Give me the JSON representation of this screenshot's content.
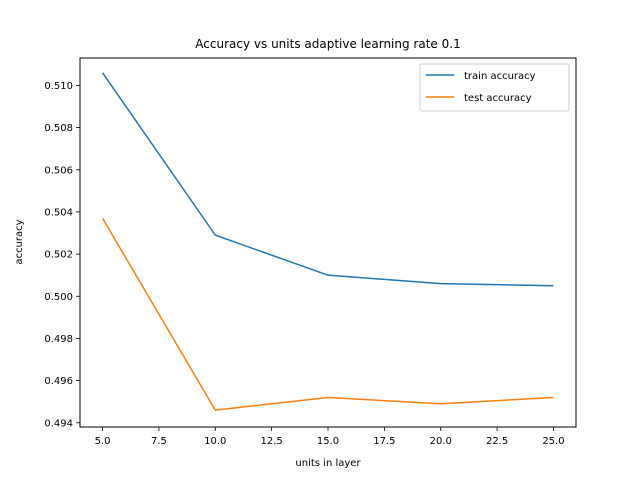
{
  "chart_data": {
    "type": "line",
    "title": "Accuracy vs units adaptive learning rate 0.1",
    "xlabel": "units in layer",
    "ylabel": "accuracy",
    "x": [
      5,
      10,
      15,
      20,
      25
    ],
    "xlim": [
      4,
      26
    ],
    "ylim": [
      0.4938,
      0.5113
    ],
    "xticks": [
      5.0,
      7.5,
      10.0,
      12.5,
      15.0,
      17.5,
      20.0,
      22.5,
      25.0
    ],
    "xtick_labels": [
      "5.0",
      "7.5",
      "10.0",
      "12.5",
      "15.0",
      "17.5",
      "20.0",
      "22.5",
      "25.0"
    ],
    "yticks": [
      0.494,
      0.496,
      0.498,
      0.5,
      0.502,
      0.504,
      0.506,
      0.508,
      0.51
    ],
    "ytick_labels": [
      "0.494",
      "0.496",
      "0.498",
      "0.500",
      "0.502",
      "0.504",
      "0.506",
      "0.508",
      "0.510"
    ],
    "grid": false,
    "legend_position": "top-right",
    "series": [
      {
        "name": "train accuracy",
        "color": "#1f77b4",
        "values": [
          0.5106,
          0.5029,
          0.501,
          0.5006,
          0.5005
        ]
      },
      {
        "name": "test accuracy",
        "color": "#ff7f0e",
        "values": [
          0.5037,
          0.4946,
          0.4952,
          0.4949,
          0.4952
        ]
      }
    ]
  }
}
